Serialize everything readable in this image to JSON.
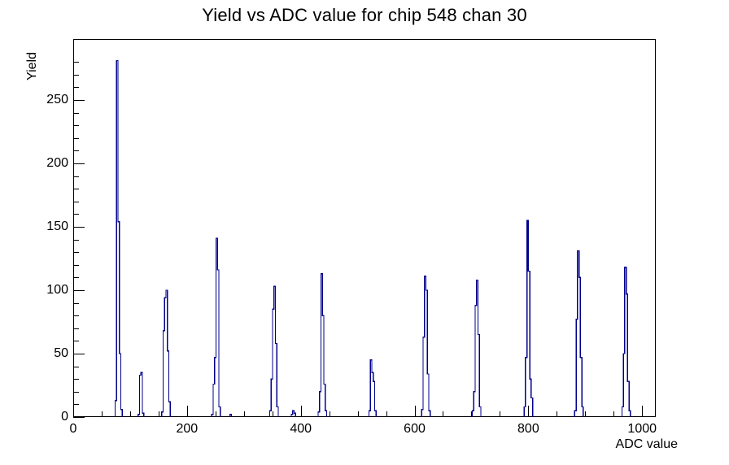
{
  "window": {
    "background": "#ffffff",
    "foreground": "#000000"
  },
  "chart_data": {
    "type": "bar",
    "title": "Yield vs ADC value for chip 548 chan 30",
    "xlabel": "ADC value",
    "ylabel": "Yield",
    "xlim": [
      0,
      1024
    ],
    "ylim": [
      0,
      298
    ],
    "x_major_ticks": [
      0,
      200,
      400,
      600,
      800,
      1000
    ],
    "x_minor_step": 50,
    "y_major_ticks": [
      0,
      50,
      100,
      150,
      200,
      250
    ],
    "y_minor_step": 10,
    "grid": false,
    "legend": "none",
    "line_color": "#00008b",
    "axis_color": "#000000",
    "bin_width_adc": 2.5,
    "clusters": [
      {
        "adc": 80,
        "bars": [
          13,
          281,
          154,
          50,
          6
        ]
      },
      {
        "adc": 119,
        "bars": [
          2,
          33,
          35,
          3
        ]
      },
      {
        "adc": 163,
        "bars": [
          4,
          68,
          94,
          100,
          52,
          12
        ]
      },
      {
        "adc": 251,
        "bars": [
          2,
          26,
          47,
          141,
          116,
          8
        ]
      },
      {
        "adc": 277,
        "bars": [
          2
        ]
      },
      {
        "adc": 353,
        "bars": [
          5,
          30,
          85,
          103,
          58,
          8
        ]
      },
      {
        "adc": 387,
        "bars": [
          2,
          5,
          3
        ]
      },
      {
        "adc": 438,
        "bars": [
          4,
          20,
          113,
          80,
          26,
          5
        ]
      },
      {
        "adc": 526,
        "bars": [
          5,
          45,
          35,
          28,
          5
        ]
      },
      {
        "adc": 620,
        "bars": [
          6,
          63,
          111,
          100,
          34,
          5
        ]
      },
      {
        "adc": 709,
        "bars": [
          5,
          20,
          88,
          108,
          65,
          8
        ]
      },
      {
        "adc": 800,
        "bars": [
          8,
          47,
          155,
          115,
          30,
          15
        ]
      },
      {
        "adc": 889,
        "bars": [
          5,
          77,
          131,
          110,
          47,
          8
        ]
      },
      {
        "adc": 972,
        "bars": [
          8,
          50,
          118,
          97,
          28,
          5
        ]
      }
    ]
  }
}
